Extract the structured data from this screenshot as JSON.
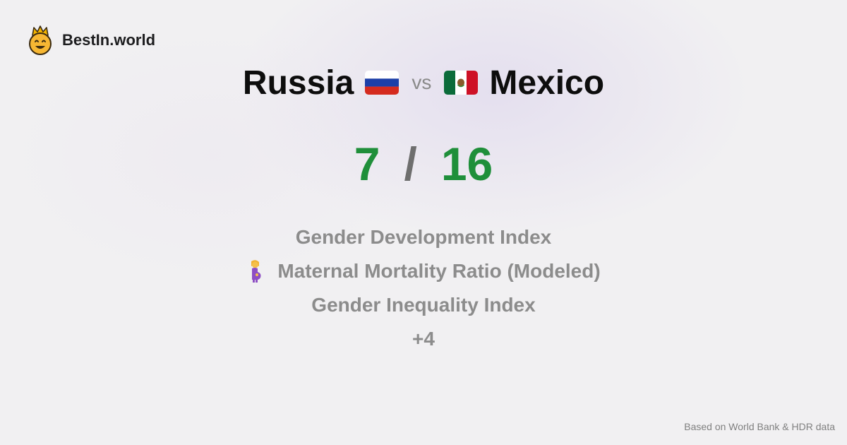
{
  "brand": {
    "name": "BestIn.world",
    "logo_icon": "crown-smiley-icon"
  },
  "comparison": {
    "left": {
      "name": "Russia",
      "flag_icon": "russia-flag-icon"
    },
    "separator": "vs",
    "right": {
      "name": "Mexico",
      "flag_icon": "mexico-flag-icon"
    }
  },
  "scores": {
    "left": "7",
    "slash": "/",
    "right": "16",
    "color": "#1f8f3a"
  },
  "metrics": [
    {
      "label": "Gender Development Index",
      "icon": ""
    },
    {
      "label": "Maternal Mortality Ratio (Modeled)",
      "icon": "pregnant-woman-icon"
    },
    {
      "label": "Gender Inequality Index",
      "icon": ""
    },
    {
      "label": "+4",
      "icon": ""
    }
  ],
  "footer": {
    "source": "Based on World Bank & HDR data"
  }
}
